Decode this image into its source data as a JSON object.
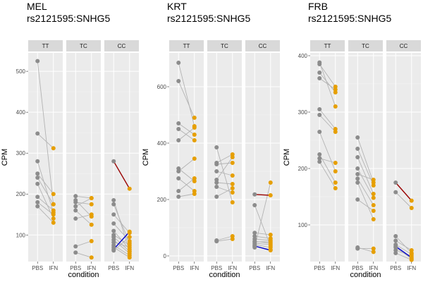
{
  "colors": {
    "panel_bg": "#ebebeb",
    "strip_bg": "#d9d9d9",
    "grid_major": "#ffffff",
    "grid_minor": "#f4f4f4",
    "line_gray": "#b3b3b3",
    "pbs_point": "#8c8c8c",
    "ifn_point": "#e69f00",
    "highlight_red": "#990000",
    "highlight_blue": "#0000cc",
    "text_dark": "#000000",
    "tick_text": "#4d4d4d"
  },
  "chart_data": [
    {
      "type": "line",
      "title": "MEL",
      "subtitle": "rs2121595:SNHG5",
      "xlabel": "condition",
      "ylabel": "CPM",
      "x_ticks": [
        "PBS",
        "IFN"
      ],
      "y_ticks": [
        100,
        200,
        300,
        400,
        500
      ],
      "ylim": [
        35,
        545
      ],
      "facets": [
        {
          "label": "TT",
          "pairs": [
            [
              525,
              175
            ],
            [
              348,
              312
            ],
            [
              280,
              155
            ],
            [
              250,
              200
            ],
            [
              240,
              175
            ],
            [
              225,
              140
            ],
            [
              193,
              160
            ],
            [
              180,
              150
            ],
            [
              170,
              130
            ]
          ]
        },
        {
          "label": "TC",
          "pairs": [
            [
              195,
              190
            ],
            [
              185,
              145
            ],
            [
              180,
              175
            ],
            [
              170,
              190
            ],
            [
              160,
              125
            ],
            [
              140,
              150
            ],
            [
              72,
              85
            ],
            [
              57,
              45
            ]
          ]
        },
        {
          "label": "CC",
          "pairs": [
            [
              185,
              60
            ],
            [
              175,
              80
            ],
            [
              150,
              105
            ],
            [
              128,
              85
            ],
            [
              110,
              65
            ],
            [
              100,
              75
            ],
            [
              95,
              60
            ],
            [
              88,
              55
            ],
            [
              82,
              70
            ],
            [
              75,
              50
            ],
            [
              70,
              45
            ],
            [
              62,
              95
            ]
          ],
          "red_pairs": [
            [
              280,
              213
            ]
          ],
          "blue_pairs": [
            [
              65,
              108
            ]
          ]
        }
      ]
    },
    {
      "type": "line",
      "title": "KRT",
      "subtitle": "rs2121595:SNHG5",
      "xlabel": "condition",
      "ylabel": "CPM",
      "x_ticks": [
        "PBS",
        "IFN"
      ],
      "y_ticks": [
        0,
        200,
        400,
        600
      ],
      "ylim": [
        -20,
        720
      ],
      "facets": [
        {
          "label": "TT",
          "pairs": [
            [
              685,
              460
            ],
            [
              620,
              490
            ],
            [
              470,
              430
            ],
            [
              450,
              410
            ],
            [
              410,
              455
            ],
            [
              310,
              265
            ],
            [
              300,
              345
            ],
            [
              275,
              230
            ],
            [
              230,
              275
            ],
            [
              210,
              220
            ]
          ]
        },
        {
          "label": "TC",
          "pairs": [
            [
              385,
              190
            ],
            [
              330,
              360
            ],
            [
              325,
              330
            ],
            [
              300,
              285
            ],
            [
              270,
              350
            ],
            [
              260,
              255
            ],
            [
              245,
              225
            ],
            [
              210,
              240
            ],
            [
              55,
              70
            ],
            [
              52,
              60
            ]
          ]
        },
        {
          "label": "CC",
          "pairs": [
            [
              180,
              35
            ],
            [
              82,
              75
            ],
            [
              70,
              62
            ],
            [
              60,
              55
            ],
            [
              52,
              45
            ],
            [
              45,
              40
            ],
            [
              40,
              30
            ],
            [
              35,
              22
            ],
            [
              30,
              260
            ],
            [
              50,
              50
            ]
          ],
          "red_pairs": [
            [
              218,
              215
            ]
          ],
          "blue_pairs": [
            [
              35,
              20
            ]
          ]
        }
      ]
    },
    {
      "type": "line",
      "title": "FRB",
      "subtitle": "rs2121595:SNHG5",
      "xlabel": "condition",
      "ylabel": "CPM",
      "x_ticks": [
        "PBS",
        "IFN"
      ],
      "y_ticks": [
        100,
        200,
        300,
        400
      ],
      "ylim": [
        35,
        405
      ],
      "facets": [
        {
          "label": "TT",
          "pairs": [
            [
              388,
              310
            ],
            [
              385,
              345
            ],
            [
              370,
              335
            ],
            [
              360,
              340
            ],
            [
              305,
              270
            ],
            [
              295,
              265
            ],
            [
              265,
              195
            ],
            [
              225,
              175
            ],
            [
              218,
              210
            ],
            [
              212,
              165
            ]
          ]
        },
        {
          "label": "TC",
          "pairs": [
            [
              255,
              175
            ],
            [
              235,
              170
            ],
            [
              220,
              155
            ],
            [
              200,
              148
            ],
            [
              190,
              180
            ],
            [
              182,
              135
            ],
            [
              175,
              110
            ],
            [
              145,
              125
            ],
            [
              60,
              52
            ],
            [
              58,
              58
            ]
          ]
        },
        {
          "label": "CC",
          "pairs": [
            [
              158,
              130
            ],
            [
              80,
              50
            ],
            [
              72,
              55
            ],
            [
              65,
              48
            ],
            [
              60,
              40
            ],
            [
              55,
              45
            ],
            [
              50,
              38
            ]
          ],
          "red_pairs": [
            [
              175,
              143
            ]
          ],
          "blue_pairs": [
            [
              62,
              42
            ]
          ]
        }
      ]
    }
  ]
}
